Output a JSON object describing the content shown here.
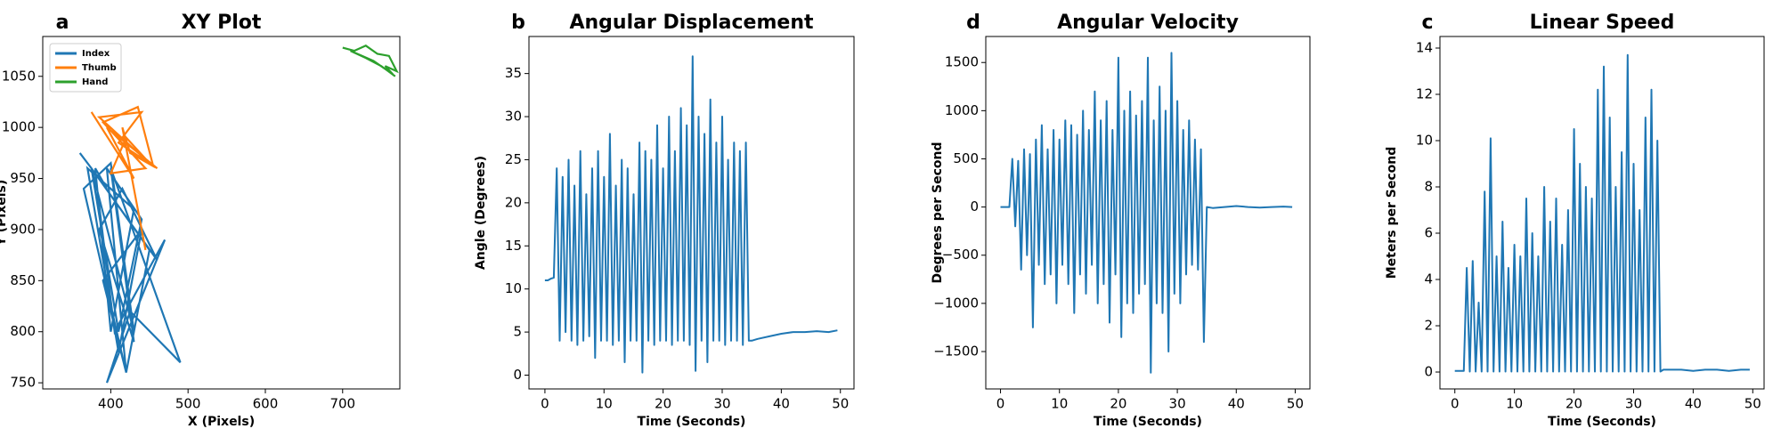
{
  "chart_data": [
    {
      "type": "line",
      "panel_label": "a",
      "title": "XY Plot",
      "xlabel": "X (Pixels)",
      "ylabel": "Y (Pixels)",
      "xlim": [
        312,
        774
      ],
      "ylim": [
        744,
        1089
      ],
      "xticks": [
        400,
        500,
        600,
        700
      ],
      "yticks": [
        750,
        800,
        850,
        900,
        950,
        1000,
        1050
      ],
      "legend": "upper left",
      "series": [
        {
          "name": "Index",
          "color": "#1f77b4",
          "x": [
            360,
            395,
            380,
            400,
            430,
            370,
            410,
            440,
            390,
            420,
            450,
            380,
            405,
            470,
            395,
            425,
            490,
            400,
            430,
            385,
            415,
            460,
            375,
            410,
            440,
            395,
            420,
            365,
            400,
            430,
            375
          ],
          "values": [
            975,
            940,
            960,
            800,
            920,
            960,
            780,
            900,
            850,
            760,
            880,
            955,
            800,
            890,
            750,
            820,
            770,
            960,
            790,
            900,
            940,
            870,
            960,
            800,
            910,
            960,
            760,
            940,
            965,
            800,
            960
          ]
        },
        {
          "name": "Thumb",
          "color": "#ff7f0e",
          "x": [
            375,
            430,
            395,
            460,
            410,
            440,
            385,
            450,
            420,
            400,
            445,
            390,
            435,
            455,
            425,
            415,
            445
          ],
          "values": [
            1015,
            950,
            1000,
            960,
            985,
            1015,
            1010,
            965,
            990,
            955,
            960,
            1005,
            1020,
            962,
            975,
            1000,
            880
          ]
        },
        {
          "name": "Hand",
          "color": "#2ca02c",
          "x": [
            700,
            715,
            730,
            745,
            760,
            770,
            755,
            765,
            740,
            725,
            710,
            730,
            750,
            768
          ],
          "values": [
            1078,
            1075,
            1080,
            1072,
            1070,
            1055,
            1060,
            1052,
            1065,
            1070,
            1075,
            1068,
            1060,
            1050
          ]
        }
      ]
    },
    {
      "type": "line",
      "panel_label": "b",
      "title": "Angular Displacement",
      "xlabel": "Time (Seconds)",
      "ylabel": "Angle (Degrees)",
      "xlim": [
        -2.7,
        52.3
      ],
      "ylim": [
        -1.6,
        39.3
      ],
      "xticks": [
        0,
        10,
        20,
        30,
        40,
        50
      ],
      "yticks": [
        0,
        5,
        10,
        15,
        20,
        25,
        30,
        35
      ],
      "color": "#1f77b4",
      "x": [
        0,
        0.5,
        1,
        1.5,
        2,
        2.5,
        3,
        3.5,
        4,
        4.5,
        5,
        5.5,
        6,
        6.5,
        7,
        7.5,
        8,
        8.5,
        9,
        9.5,
        10,
        10.5,
        11,
        11.5,
        12,
        12.5,
        13,
        13.5,
        14,
        14.5,
        15,
        15.5,
        16,
        16.5,
        17,
        17.5,
        18,
        18.5,
        19,
        19.5,
        20,
        20.5,
        21,
        21.5,
        22,
        22.5,
        23,
        23.5,
        24,
        24.5,
        25,
        25.5,
        26,
        26.5,
        27,
        27.5,
        28,
        28.5,
        29,
        29.5,
        30,
        30.5,
        31,
        31.5,
        32,
        32.5,
        33,
        33.5,
        34,
        34.5,
        35,
        36,
        38,
        40,
        42,
        44,
        46,
        48,
        49.5
      ],
      "values": [
        11,
        11,
        11.2,
        11.3,
        24,
        4,
        23,
        5,
        25,
        4,
        22,
        3.5,
        26,
        4,
        21,
        4.5,
        24,
        2,
        26,
        4,
        23,
        4,
        28,
        3.5,
        22,
        4,
        25,
        1.5,
        24,
        4,
        21,
        4,
        27,
        0.3,
        26,
        4,
        25,
        3.5,
        29,
        4,
        24,
        4,
        30,
        3.5,
        26,
        4,
        31,
        4,
        29,
        3.5,
        37,
        0.5,
        30,
        4,
        28,
        1.5,
        32,
        4,
        27,
        4,
        30,
        3.5,
        25,
        4,
        27,
        4,
        26,
        3.5,
        27,
        4,
        4,
        4.2,
        4.5,
        4.8,
        5,
        5,
        5.1,
        5,
        5.2
      ]
    },
    {
      "type": "line",
      "panel_label": "d",
      "title": "Angular Velocity",
      "xlabel": "Time (Seconds)",
      "ylabel": "Degrees per Second",
      "xlim": [
        -2.5,
        52.5
      ],
      "ylim": [
        -1888,
        1770
      ],
      "xticks": [
        0,
        10,
        20,
        30,
        40,
        50
      ],
      "yticks": [
        {
          "value": -1500,
          "label": "−1500"
        },
        {
          "value": -1000,
          "label": "−1000"
        },
        {
          "value": -500,
          "label": "−500"
        },
        0,
        500,
        1000,
        1500
      ],
      "color": "#1f77b4",
      "x": [
        0,
        0.5,
        1,
        1.5,
        2,
        2.5,
        3,
        3.5,
        4,
        4.5,
        5,
        5.5,
        6,
        6.5,
        7,
        7.5,
        8,
        8.5,
        9,
        9.5,
        10,
        10.5,
        11,
        11.5,
        12,
        12.5,
        13,
        13.5,
        14,
        14.5,
        15,
        15.5,
        16,
        16.5,
        17,
        17.5,
        18,
        18.5,
        19,
        19.5,
        20,
        20.5,
        21,
        21.5,
        22,
        22.5,
        23,
        23.5,
        24,
        24.5,
        25,
        25.5,
        26,
        26.5,
        27,
        27.5,
        28,
        28.5,
        29,
        29.5,
        30,
        30.5,
        31,
        31.5,
        32,
        32.5,
        33,
        33.5,
        34,
        34.5,
        35,
        36,
        38,
        40,
        42,
        44,
        46,
        48,
        49.5
      ],
      "values": [
        0,
        0,
        0,
        0,
        500,
        -200,
        480,
        -650,
        600,
        -500,
        550,
        -1250,
        700,
        -600,
        850,
        -800,
        600,
        -700,
        800,
        -1000,
        700,
        -600,
        900,
        -800,
        850,
        -1100,
        750,
        -700,
        1000,
        -900,
        800,
        -600,
        1200,
        -1000,
        900,
        -800,
        1100,
        -1200,
        800,
        -700,
        1550,
        -1350,
        1000,
        -1000,
        1200,
        -1100,
        950,
        -900,
        1100,
        -800,
        1550,
        -1720,
        900,
        -1000,
        1250,
        -1100,
        1000,
        -1500,
        1600,
        -900,
        1100,
        -1000,
        800,
        -700,
        900,
        -600,
        700,
        -650,
        600,
        -1400,
        0,
        -10,
        0,
        10,
        0,
        -5,
        0,
        5,
        0
      ]
    },
    {
      "type": "line",
      "panel_label": "c",
      "title": "Linear Speed",
      "xlabel": "Time (Seconds)",
      "ylabel": "Meters per Second",
      "xlim": [
        -2.5,
        51.9
      ],
      "ylim": [
        -0.73,
        14.5
      ],
      "xticks": [
        0,
        10,
        20,
        30,
        40,
        50
      ],
      "yticks": [
        0,
        2,
        4,
        6,
        8,
        10,
        12,
        14
      ],
      "color": "#1f77b4",
      "x": [
        0,
        0.5,
        1,
        1.5,
        2,
        2.5,
        3,
        3.5,
        4,
        4.5,
        5,
        5.5,
        6,
        6.5,
        7,
        7.5,
        8,
        8.5,
        9,
        9.5,
        10,
        10.5,
        11,
        11.5,
        12,
        12.5,
        13,
        13.5,
        14,
        14.5,
        15,
        15.5,
        16,
        16.5,
        17,
        17.5,
        18,
        18.5,
        19,
        19.5,
        20,
        20.5,
        21,
        21.5,
        22,
        22.5,
        23,
        23.5,
        24,
        24.5,
        25,
        25.5,
        26,
        26.5,
        27,
        27.5,
        28,
        28.5,
        29,
        29.5,
        30,
        30.5,
        31,
        31.5,
        32,
        32.5,
        33,
        33.5,
        34,
        34.5,
        35,
        36,
        38,
        40,
        42,
        44,
        46,
        48,
        49.5
      ],
      "values": [
        0.05,
        0.05,
        0.05,
        0.05,
        4.5,
        0.02,
        4.8,
        0.02,
        3,
        0.02,
        7.8,
        0.02,
        10.1,
        0.02,
        5,
        0.02,
        6.5,
        0.02,
        4.5,
        0.02,
        5.5,
        0.02,
        5,
        0.02,
        7.5,
        0.02,
        6,
        0.02,
        5,
        0.02,
        8,
        0.02,
        6.5,
        0.02,
        7.5,
        0.02,
        5.5,
        0.02,
        7,
        0.02,
        10.5,
        0.02,
        9,
        0.02,
        8,
        0.02,
        7.5,
        0.02,
        12.2,
        0.02,
        13.2,
        0.02,
        11,
        0.02,
        8,
        0.02,
        9.5,
        0.02,
        13.7,
        0.02,
        9,
        0.02,
        7,
        0.02,
        11,
        0.02,
        12.2,
        0.02,
        10,
        0.02,
        0.1,
        0.1,
        0.1,
        0.05,
        0.1,
        0.1,
        0.05,
        0.1,
        0.1
      ]
    }
  ]
}
